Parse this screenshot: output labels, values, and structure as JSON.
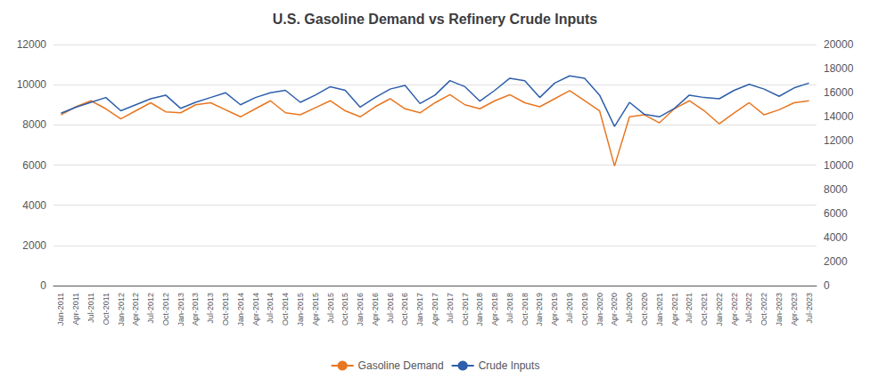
{
  "chart_data": {
    "type": "line",
    "title": "U.S. Gasoline Demand vs Refinery Crude Inputs",
    "categories": [
      "Jan-2011",
      "Apr-2011",
      "Jul-2011",
      "Oct-2011",
      "Jan-2012",
      "Apr-2012",
      "Jul-2012",
      "Oct-2012",
      "Jan-2013",
      "Apr-2013",
      "Jul-2013",
      "Oct-2013",
      "Jan-2014",
      "Apr-2014",
      "Jul-2014",
      "Oct-2014",
      "Jan-2015",
      "Apr-2015",
      "Jul-2015",
      "Oct-2015",
      "Jan-2016",
      "Apr-2016",
      "Jul-2016",
      "Oct-2016",
      "Jan-2017",
      "Apr-2017",
      "Jul-2017",
      "Oct-2017",
      "Jan-2018",
      "Apr-2018",
      "Jul-2018",
      "Oct-2018",
      "Jan-2019",
      "Apr-2019",
      "Jul-2019",
      "Oct-2019",
      "Jan-2020",
      "Apr-2020",
      "Jul-2020",
      "Oct-2020",
      "Jan-2021",
      "Apr-2021",
      "Jul-2021",
      "Oct-2021",
      "Jan-2022",
      "Apr-2022",
      "Jul-2022",
      "Oct-2022",
      "Jan-2023",
      "Apr-2023",
      "Jul-2023"
    ],
    "series": [
      {
        "name": "Gasoline Demand",
        "color": "#E87722",
        "values": [
          8500,
          8900,
          9200,
          8800,
          8300,
          8700,
          9100,
          8650,
          8600,
          9000,
          9100,
          8750,
          8400,
          8800,
          9200,
          8600,
          8500,
          8850,
          9200,
          8700,
          8400,
          8900,
          9300,
          8800,
          8600,
          9100,
          9500,
          9000,
          8800,
          9200,
          9500,
          9100,
          8900,
          9300,
          9700,
          9200,
          8700,
          5950,
          8400,
          8500,
          8100,
          8800,
          9200,
          8700,
          8050,
          8600,
          9100,
          8500,
          8750,
          9100,
          9200
        ]
      },
      {
        "name": "Crude Inputs",
        "color": "#2E5FAC",
        "axis": "y2",
        "values": [
          14300,
          14800,
          15200,
          15600,
          14500,
          15000,
          15500,
          15800,
          14700,
          15200,
          15600,
          16000,
          15000,
          15600,
          16000,
          16200,
          15200,
          15800,
          16500,
          16200,
          14800,
          15600,
          16300,
          16600,
          15100,
          15800,
          17000,
          16500,
          15300,
          16200,
          17200,
          17000,
          15600,
          16800,
          17400,
          17200,
          15800,
          13200,
          15200,
          14200,
          14000,
          14700,
          15800,
          15600,
          15500,
          16200,
          16700,
          16300,
          15700,
          16400,
          16800
        ]
      }
    ],
    "ylim": [
      0,
      12000
    ],
    "yticks": [
      0,
      2000,
      4000,
      6000,
      8000,
      10000,
      12000
    ],
    "y2lim": [
      0,
      20000
    ],
    "y2ticks": [
      0,
      2000,
      4000,
      6000,
      8000,
      10000,
      12000,
      14000,
      16000,
      18000,
      20000
    ],
    "grid": true,
    "legend": "bottom"
  }
}
